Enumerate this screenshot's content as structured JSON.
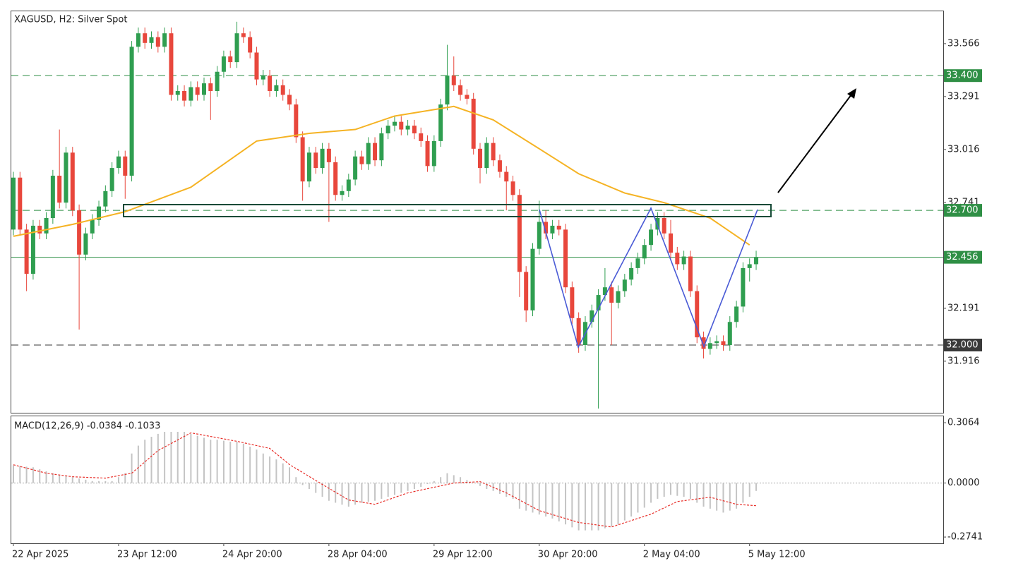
{
  "chart_data": {
    "type": "candlestick",
    "title": "XAGUSD, H2:  Silver Spot",
    "categories": [
      "22 Apr 2025",
      null,
      null,
      null,
      null,
      null,
      null,
      null,
      null,
      null,
      null,
      null,
      null,
      null,
      null,
      null,
      "23 Apr 12:00",
      null,
      null,
      null,
      null,
      null,
      null,
      null,
      null,
      null,
      null,
      null,
      null,
      null,
      null,
      null,
      "24 Apr 20:00",
      null,
      null,
      null,
      null,
      null,
      null,
      null,
      null,
      null,
      null,
      null,
      null,
      null,
      null,
      null,
      "28 Apr 04:00",
      null,
      null,
      null,
      null,
      null,
      null,
      null,
      null,
      null,
      null,
      null,
      null,
      null,
      null,
      null,
      "29 Apr 12:00",
      null,
      null,
      null,
      null,
      null,
      null,
      null,
      null,
      null,
      null,
      null,
      null,
      null,
      null,
      null,
      "30 Apr 20:00",
      null,
      null,
      null,
      null,
      null,
      null,
      null,
      null,
      null,
      null,
      null,
      null,
      null,
      null,
      null,
      "2 May 04:00",
      null,
      null,
      null,
      null,
      null,
      null,
      null,
      null,
      null,
      null,
      null,
      null,
      null,
      null,
      null,
      "5 May 12:00",
      null
    ],
    "ohlc": [
      [
        32.6,
        32.9,
        32.57,
        32.87
      ],
      [
        32.87,
        32.9,
        32.57,
        32.6
      ],
      [
        32.6,
        32.63,
        32.28,
        32.37
      ],
      [
        32.37,
        32.65,
        32.34,
        32.62
      ],
      [
        32.62,
        32.65,
        32.55,
        32.58
      ],
      [
        32.58,
        32.69,
        32.55,
        32.66
      ],
      [
        32.66,
        32.91,
        32.63,
        32.88
      ],
      [
        32.88,
        33.12,
        32.71,
        32.74
      ],
      [
        32.74,
        33.03,
        32.71,
        33.0
      ],
      [
        33.0,
        33.03,
        32.67,
        32.7
      ],
      [
        32.7,
        32.73,
        32.08,
        32.47
      ],
      [
        32.47,
        32.61,
        32.44,
        32.58
      ],
      [
        32.58,
        32.68,
        32.55,
        32.65
      ],
      [
        32.65,
        32.75,
        32.62,
        32.72
      ],
      [
        32.72,
        32.83,
        32.69,
        32.8
      ],
      [
        32.8,
        32.95,
        32.77,
        32.92
      ],
      [
        32.92,
        33.01,
        32.89,
        32.98
      ],
      [
        32.98,
        33.01,
        32.76,
        32.88
      ],
      [
        32.88,
        33.58,
        32.85,
        33.55
      ],
      [
        33.55,
        33.65,
        33.52,
        33.62
      ],
      [
        33.62,
        33.65,
        33.54,
        33.57
      ],
      [
        33.57,
        33.63,
        33.54,
        33.6
      ],
      [
        33.6,
        33.63,
        33.52,
        33.55
      ],
      [
        33.55,
        33.65,
        33.52,
        33.62
      ],
      [
        33.62,
        33.65,
        33.27,
        33.3
      ],
      [
        33.3,
        33.35,
        33.27,
        33.32
      ],
      [
        33.32,
        33.35,
        33.24,
        33.27
      ],
      [
        33.27,
        33.37,
        33.24,
        33.34
      ],
      [
        33.34,
        33.37,
        33.27,
        33.3
      ],
      [
        33.3,
        33.39,
        33.27,
        33.36
      ],
      [
        33.36,
        33.39,
        33.17,
        33.32
      ],
      [
        33.32,
        33.45,
        33.29,
        33.42
      ],
      [
        33.42,
        33.53,
        33.39,
        33.5
      ],
      [
        33.5,
        33.53,
        33.44,
        33.47
      ],
      [
        33.47,
        33.68,
        33.44,
        33.62
      ],
      [
        33.62,
        33.65,
        33.57,
        33.6
      ],
      [
        33.6,
        33.63,
        33.49,
        33.52
      ],
      [
        33.52,
        33.55,
        33.35,
        33.38
      ],
      [
        33.38,
        33.43,
        33.35,
        33.4
      ],
      [
        33.4,
        33.43,
        33.29,
        33.32
      ],
      [
        33.32,
        33.38,
        33.29,
        33.35
      ],
      [
        33.35,
        33.38,
        33.27,
        33.3
      ],
      [
        33.3,
        33.33,
        33.22,
        33.25
      ],
      [
        33.25,
        33.28,
        33.05,
        33.08
      ],
      [
        33.08,
        33.11,
        32.75,
        32.85
      ],
      [
        32.85,
        33.03,
        32.82,
        33.0
      ],
      [
        33.0,
        33.03,
        32.89,
        32.92
      ],
      [
        32.92,
        33.05,
        32.89,
        33.02
      ],
      [
        33.02,
        33.05,
        32.64,
        32.95
      ],
      [
        32.95,
        32.98,
        32.75,
        32.78
      ],
      [
        32.78,
        32.83,
        32.75,
        32.8
      ],
      [
        32.8,
        32.89,
        32.77,
        32.86
      ],
      [
        32.86,
        33.01,
        32.83,
        32.98
      ],
      [
        32.98,
        33.01,
        32.91,
        32.94
      ],
      [
        32.94,
        33.08,
        32.91,
        33.05
      ],
      [
        33.05,
        33.08,
        32.93,
        32.96
      ],
      [
        32.96,
        33.13,
        32.93,
        33.1
      ],
      [
        33.1,
        33.17,
        33.07,
        33.14
      ],
      [
        33.14,
        33.19,
        33.11,
        33.16
      ],
      [
        33.16,
        33.19,
        33.09,
        33.12
      ],
      [
        33.12,
        33.17,
        33.09,
        33.14
      ],
      [
        33.14,
        33.17,
        33.07,
        33.1
      ],
      [
        33.1,
        33.13,
        33.03,
        33.06
      ],
      [
        33.06,
        33.09,
        32.9,
        32.93
      ],
      [
        32.93,
        33.09,
        32.9,
        33.06
      ],
      [
        33.06,
        33.28,
        33.03,
        33.25
      ],
      [
        33.25,
        33.56,
        33.22,
        33.4
      ],
      [
        33.4,
        33.5,
        33.32,
        33.35
      ],
      [
        33.35,
        33.38,
        33.27,
        33.3
      ],
      [
        33.3,
        33.33,
        33.25,
        33.28
      ],
      [
        33.28,
        33.31,
        32.99,
        33.02
      ],
      [
        33.02,
        33.05,
        32.84,
        32.92
      ],
      [
        32.92,
        33.08,
        32.89,
        33.05
      ],
      [
        33.05,
        33.08,
        32.93,
        32.96
      ],
      [
        32.96,
        32.99,
        32.87,
        32.9
      ],
      [
        32.9,
        32.93,
        32.7,
        32.85
      ],
      [
        32.85,
        32.88,
        32.75,
        32.78
      ],
      [
        32.78,
        32.81,
        32.25,
        32.38
      ],
      [
        32.38,
        32.41,
        32.12,
        32.18
      ],
      [
        32.18,
        32.53,
        32.15,
        32.5
      ],
      [
        32.5,
        32.75,
        32.47,
        32.64
      ],
      [
        32.64,
        32.7,
        32.55,
        32.58
      ],
      [
        32.58,
        32.65,
        32.55,
        32.62
      ],
      [
        32.62,
        32.65,
        32.57,
        32.6
      ],
      [
        32.6,
        32.63,
        32.27,
        32.3
      ],
      [
        32.3,
        32.33,
        32.11,
        32.14
      ],
      [
        32.14,
        32.17,
        31.96,
        32.0
      ],
      [
        32.0,
        32.15,
        31.97,
        32.12
      ],
      [
        32.12,
        32.21,
        32.09,
        32.18
      ],
      [
        32.18,
        32.29,
        31.67,
        32.26
      ],
      [
        32.26,
        32.4,
        32.23,
        32.3
      ],
      [
        32.3,
        32.33,
        32.0,
        32.22
      ],
      [
        32.22,
        32.31,
        32.19,
        32.28
      ],
      [
        32.28,
        32.37,
        32.25,
        32.34
      ],
      [
        32.34,
        32.43,
        32.31,
        32.4
      ],
      [
        32.4,
        32.48,
        32.37,
        32.45
      ],
      [
        32.45,
        32.55,
        32.42,
        32.52
      ],
      [
        32.52,
        32.63,
        32.49,
        32.6
      ],
      [
        32.6,
        32.69,
        32.57,
        32.66
      ],
      [
        32.66,
        32.69,
        32.55,
        32.58
      ],
      [
        32.58,
        32.65,
        32.45,
        32.48
      ],
      [
        32.48,
        32.51,
        32.39,
        32.42
      ],
      [
        32.42,
        32.49,
        32.39,
        32.46
      ],
      [
        32.46,
        32.49,
        32.25,
        32.28
      ],
      [
        32.28,
        32.31,
        32.01,
        32.04
      ],
      [
        32.04,
        32.07,
        31.93,
        31.98
      ],
      [
        31.98,
        32.04,
        31.95,
        32.01
      ],
      [
        32.01,
        32.05,
        31.98,
        32.02
      ],
      [
        32.02,
        32.05,
        31.97,
        32.0
      ],
      [
        32.0,
        32.15,
        31.97,
        32.12
      ],
      [
        32.12,
        32.23,
        32.09,
        32.2
      ],
      [
        32.2,
        32.43,
        32.17,
        32.4
      ],
      [
        32.4,
        32.45,
        32.33,
        32.42
      ],
      [
        32.42,
        32.49,
        32.39,
        32.456
      ]
    ],
    "up_color": "#2f9e50",
    "down_color": "#e8473c",
    "ma": {
      "color": "#f5b324",
      "x": [
        0,
        9,
        17,
        27,
        37,
        45,
        52,
        58,
        67,
        73,
        80,
        86,
        93,
        99,
        106,
        112
      ],
      "values": [
        32.565,
        32.627,
        32.693,
        32.82,
        33.06,
        33.1,
        33.12,
        33.19,
        33.24,
        33.17,
        33.02,
        32.89,
        32.79,
        32.74,
        32.66,
        32.52
      ]
    },
    "ylim": [
      31.648,
      33.738
    ],
    "yticks": [
      33.566,
      33.291,
      33.016,
      32.741,
      32.191,
      31.916
    ],
    "levels": [
      {
        "price": {
          "value": 33.4,
          "label": "33.400"
        },
        "color": "#2f8f45",
        "style": "dashed"
      },
      {
        "price": {
          "value": 32.7,
          "label": "32.700"
        },
        "color": "#2f8f45",
        "style": "dashed"
      },
      {
        "price": {
          "value": 32.0,
          "label": "32.000"
        },
        "color": "#3a3a3a",
        "style": "dashed"
      },
      {
        "price": 32.456,
        "color": "#2f8f45",
        "style": "solid"
      }
    ],
    "macd": {
      "title": "MACD(12,26,9) -0.0384 -0.1033",
      "hist_color": "#c4c4c4",
      "signal_color": "#e8302a",
      "histogram": [
        0.09,
        0.087,
        0.083,
        0.08,
        0.07,
        0.06,
        0.05,
        0.043,
        0.037,
        0.03,
        0.023,
        0.017,
        0.01,
        0.01,
        0.01,
        0.01,
        0.03,
        0.05,
        0.15,
        0.19,
        0.22,
        0.235,
        0.25,
        0.26,
        0.26,
        0.26,
        0.26,
        0.25,
        0.24,
        0.23,
        0.22,
        0.22,
        0.215,
        0.21,
        0.21,
        0.2,
        0.185,
        0.17,
        0.15,
        0.135,
        0.12,
        0.1,
        0.08,
        0.03,
        -0.01,
        -0.03,
        -0.05,
        -0.07,
        -0.09,
        -0.1,
        -0.11,
        -0.12,
        -0.11,
        -0.1,
        -0.095,
        -0.09,
        -0.08,
        -0.07,
        -0.06,
        -0.05,
        -0.04,
        -0.03,
        -0.02,
        -0.005,
        0.01,
        0.03,
        0.05,
        0.04,
        0.03,
        0.015,
        0,
        -0.015,
        -0.03,
        -0.04,
        -0.055,
        -0.07,
        -0.08,
        -0.13,
        -0.14,
        -0.15,
        -0.16,
        -0.17,
        -0.18,
        -0.195,
        -0.21,
        -0.225,
        -0.24,
        -0.24,
        -0.24,
        -0.24,
        -0.23,
        -0.22,
        -0.21,
        -0.19,
        -0.17,
        -0.15,
        -0.125,
        -0.1,
        -0.08,
        -0.07,
        -0.06,
        -0.065,
        -0.07,
        -0.08,
        -0.1,
        -0.12,
        -0.13,
        -0.14,
        -0.15,
        -0.14,
        -0.13,
        -0.1,
        -0.07,
        -0.04
      ],
      "signal": {
        "x": [
          0,
          5,
          9,
          14,
          18,
          22,
          27,
          34,
          39,
          42,
          47,
          51,
          55,
          60,
          67,
          71,
          75,
          80,
          86,
          91,
          97,
          101,
          106,
          110,
          113
        ],
        "values": [
          0.093,
          0.05,
          0.032,
          0.025,
          0.05,
          0.165,
          0.255,
          0.212,
          0.176,
          0.094,
          -0.007,
          -0.086,
          -0.108,
          -0.05,
          0,
          0.007,
          -0.05,
          -0.14,
          -0.2,
          -0.223,
          -0.158,
          -0.094,
          -0.072,
          -0.108,
          -0.115
        ]
      },
      "ylim": [
        -0.306,
        0.339
      ],
      "yticks": [
        0.3064,
        {
          "value": 0,
          "label": "0.0000"
        },
        -0.2741
      ]
    }
  }
}
